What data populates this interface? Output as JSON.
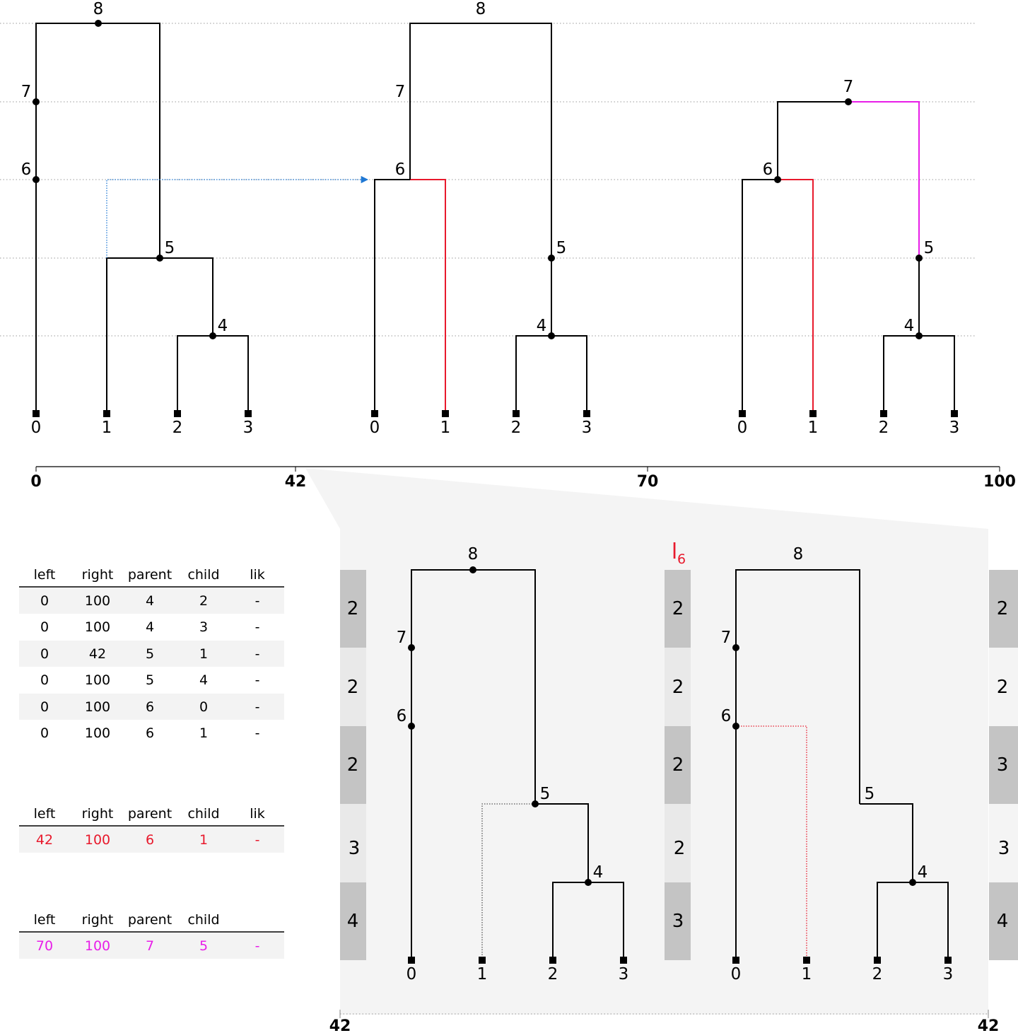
{
  "axis": {
    "ticks": [
      "0",
      "42",
      "70",
      "100"
    ],
    "zoom_left": "42",
    "zoom_right": "42"
  },
  "trees": {
    "top_left": {
      "nodes": [
        "0",
        "1",
        "2",
        "3",
        "4",
        "5",
        "6",
        "7",
        "8"
      ]
    },
    "top_mid": {
      "nodes": [
        "0",
        "1",
        "2",
        "3",
        "4",
        "5",
        "6",
        "7",
        "8"
      ]
    },
    "top_right": {
      "nodes": [
        "0",
        "1",
        "2",
        "3",
        "4",
        "5",
        "6",
        "7"
      ]
    },
    "zoom_left": {
      "nodes": [
        "0",
        "1",
        "2",
        "3",
        "4",
        "5",
        "6",
        "7",
        "8"
      ]
    },
    "zoom_right": {
      "nodes": [
        "0",
        "1",
        "2",
        "3",
        "4",
        "5",
        "6",
        "7",
        "8"
      ]
    }
  },
  "likelihood_label": {
    "main": "l",
    "sub": "6"
  },
  "lik_columns": {
    "col1": [
      "2",
      "2",
      "2",
      "3",
      "4"
    ],
    "col2": [
      "2",
      "2",
      "2",
      "2",
      "3"
    ],
    "col3": [
      "2",
      "2",
      "3",
      "3",
      "4"
    ]
  },
  "tables": [
    {
      "headers": [
        "left",
        "right",
        "parent",
        "child",
        "lik"
      ],
      "rows": [
        [
          "0",
          "100",
          "4",
          "2",
          "-"
        ],
        [
          "0",
          "100",
          "4",
          "3",
          "-"
        ],
        [
          "0",
          "42",
          "5",
          "1",
          "-"
        ],
        [
          "0",
          "100",
          "5",
          "4",
          "-"
        ],
        [
          "0",
          "100",
          "6",
          "0",
          "-"
        ],
        [
          "0",
          "100",
          "6",
          "1",
          "-"
        ]
      ]
    },
    {
      "headers": [
        "left",
        "right",
        "parent",
        "child",
        "lik"
      ],
      "rows": [
        [
          "42",
          "100",
          "6",
          "1",
          "-"
        ]
      ]
    },
    {
      "headers": [
        "left",
        "right",
        "parent",
        "child",
        ""
      ],
      "rows": [
        [
          "70",
          "100",
          "7",
          "5",
          "-"
        ]
      ]
    }
  ],
  "colors": {
    "red": "#e8192c",
    "magenta": "#e81ee8",
    "blue": "#1f78d4",
    "dark_gray": "#c4c4c4",
    "light_gray": "#e9e9e9",
    "panel": "#f4f4f4",
    "row_stripe": "#f3f3f3"
  }
}
